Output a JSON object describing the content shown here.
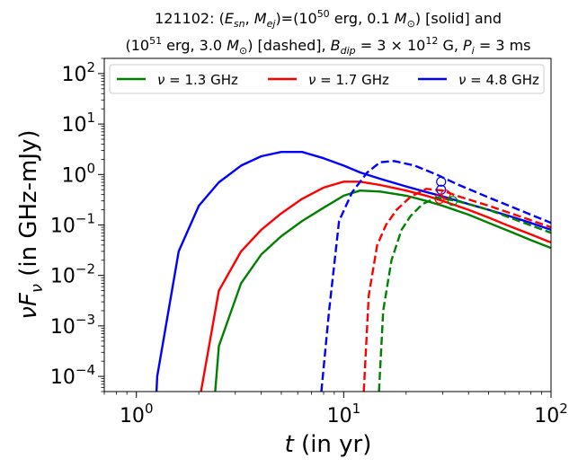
{
  "chart_data": {
    "type": "line",
    "title_line1_parts": [
      "121102: (",
      "E",
      "sn",
      ", ",
      "M",
      "ej",
      ")=(10",
      "50",
      " erg, 0.1 ",
      "M",
      "⊙",
      ") [solid] and"
    ],
    "title_line2_parts": [
      "(10",
      "51",
      " erg, 3.0 ",
      "M",
      "⊙",
      ") [dashed], ",
      "B",
      "dip",
      " = 3 × 10",
      "12",
      " G, ",
      "P",
      "i",
      " = 3 ms"
    ],
    "title_line1": "121102: (E_sn, M_ej)=(10^50 erg, 0.1 M_sun) [solid] and",
    "title_line2": "(10^51 erg, 3.0 M_sun) [dashed], B_dip = 3 x 10^12 G, P_i = 3 ms",
    "xlabel_var": "t",
    "xlabel_rest": " (in yr)",
    "ylabel_var": "νF",
    "ylabel_sub": "ν",
    "ylabel_rest": " (in GHz-mJy)",
    "xscale": "log",
    "yscale": "log",
    "xlim": [
      0.7,
      100
    ],
    "ylim": [
      5e-05,
      200
    ],
    "x_ticks": [
      {
        "value": 1,
        "mantissa": "10",
        "exp": "0"
      },
      {
        "value": 10,
        "mantissa": "10",
        "exp": "1"
      },
      {
        "value": 100,
        "mantissa": "10",
        "exp": "2"
      }
    ],
    "y_ticks": [
      {
        "value": 0.0001,
        "mantissa": "10",
        "exp": "−4"
      },
      {
        "value": 0.001,
        "mantissa": "10",
        "exp": "−3"
      },
      {
        "value": 0.01,
        "mantissa": "10",
        "exp": "−2"
      },
      {
        "value": 0.1,
        "mantissa": "10",
        "exp": "−1"
      },
      {
        "value": 1,
        "mantissa": "10",
        "exp": "0"
      },
      {
        "value": 10,
        "mantissa": "10",
        "exp": "1"
      },
      {
        "value": 100,
        "mantissa": "10",
        "exp": "2"
      }
    ],
    "legend_position": "top",
    "series": [
      {
        "name": "ν = 1.3 GHz",
        "label_prefix": "ν",
        "label_rest": " = 1.3 GHz",
        "color": "#008000",
        "style": "solid",
        "x": [
          2.4,
          2.5,
          3.2,
          4,
          5,
          6.3,
          8,
          10,
          12,
          15,
          20,
          25,
          30,
          40,
          50,
          63,
          80,
          100
        ],
        "y": [
          5e-05,
          0.0004,
          0.007,
          0.026,
          0.06,
          0.12,
          0.22,
          0.38,
          0.48,
          0.46,
          0.38,
          0.3,
          0.24,
          0.16,
          0.11,
          0.075,
          0.05,
          0.035
        ]
      },
      {
        "name": "ν = 1.7 GHz",
        "label_prefix": "ν",
        "label_rest": " = 1.7 GHz",
        "color": "#ff0000",
        "style": "solid",
        "x": [
          2.05,
          2.5,
          3.2,
          4,
          5,
          6.3,
          8,
          10,
          12,
          15,
          20,
          25,
          30,
          40,
          50,
          63,
          80,
          100
        ],
        "y": [
          5e-05,
          0.005,
          0.03,
          0.08,
          0.17,
          0.33,
          0.55,
          0.72,
          0.72,
          0.62,
          0.48,
          0.38,
          0.3,
          0.2,
          0.14,
          0.095,
          0.065,
          0.045
        ]
      },
      {
        "name": "ν = 4.8 GHz",
        "label_prefix": "ν",
        "label_rest": " = 4.8 GHz",
        "color": "#0000ff",
        "style": "solid",
        "x": [
          1.25,
          1.26,
          1.6,
          2,
          2.5,
          3.2,
          4,
          5,
          6.3,
          8,
          10,
          12,
          15,
          20,
          25,
          30,
          40,
          50,
          63,
          80,
          100
        ],
        "y": [
          5e-05,
          0.0001,
          0.03,
          0.24,
          0.7,
          1.5,
          2.3,
          2.8,
          2.8,
          2.1,
          1.5,
          1.1,
          0.82,
          0.58,
          0.45,
          0.37,
          0.26,
          0.2,
          0.15,
          0.11,
          0.08
        ]
      },
      {
        "name": "1.3 GHz dashed",
        "color": "#008000",
        "style": "dashed",
        "in_legend": false,
        "x": [
          14.8,
          15.5,
          17,
          19,
          21,
          24,
          28,
          35,
          50,
          70,
          100
        ],
        "y": [
          5e-05,
          0.002,
          0.02,
          0.08,
          0.15,
          0.26,
          0.35,
          0.3,
          0.2,
          0.12,
          0.07
        ]
      },
      {
        "name": "1.7 GHz dashed",
        "color": "#ff0000",
        "style": "dashed",
        "in_legend": false,
        "x": [
          12.5,
          13.2,
          14.5,
          16,
          18,
          21,
          25,
          30,
          35,
          50,
          70,
          100
        ],
        "y": [
          5e-05,
          0.004,
          0.04,
          0.1,
          0.2,
          0.36,
          0.52,
          0.48,
          0.38,
          0.24,
          0.15,
          0.09
        ]
      },
      {
        "name": "4.8 GHz dashed",
        "color": "#0000ff",
        "style": "dashed",
        "in_legend": false,
        "x": [
          7.8,
          8.5,
          9.5,
          11,
          13,
          15,
          17.5,
          22,
          28,
          35,
          50,
          70,
          100
        ],
        "y": [
          5e-05,
          0.002,
          0.12,
          0.45,
          1.1,
          1.75,
          1.85,
          1.5,
          1.0,
          0.65,
          0.35,
          0.2,
          0.11
        ]
      }
    ],
    "markers": [
      {
        "x": 29.5,
        "y": 0.72,
        "color": "#0000ff"
      },
      {
        "x": 29.5,
        "y": 0.5,
        "color": "#0000ff"
      },
      {
        "x": 29.0,
        "y": 0.33,
        "color": "#ff0000"
      },
      {
        "x": 31.0,
        "y": 0.4,
        "color": "#ff0000"
      },
      {
        "x": 33.5,
        "y": 0.3,
        "color": "#008000"
      }
    ]
  }
}
